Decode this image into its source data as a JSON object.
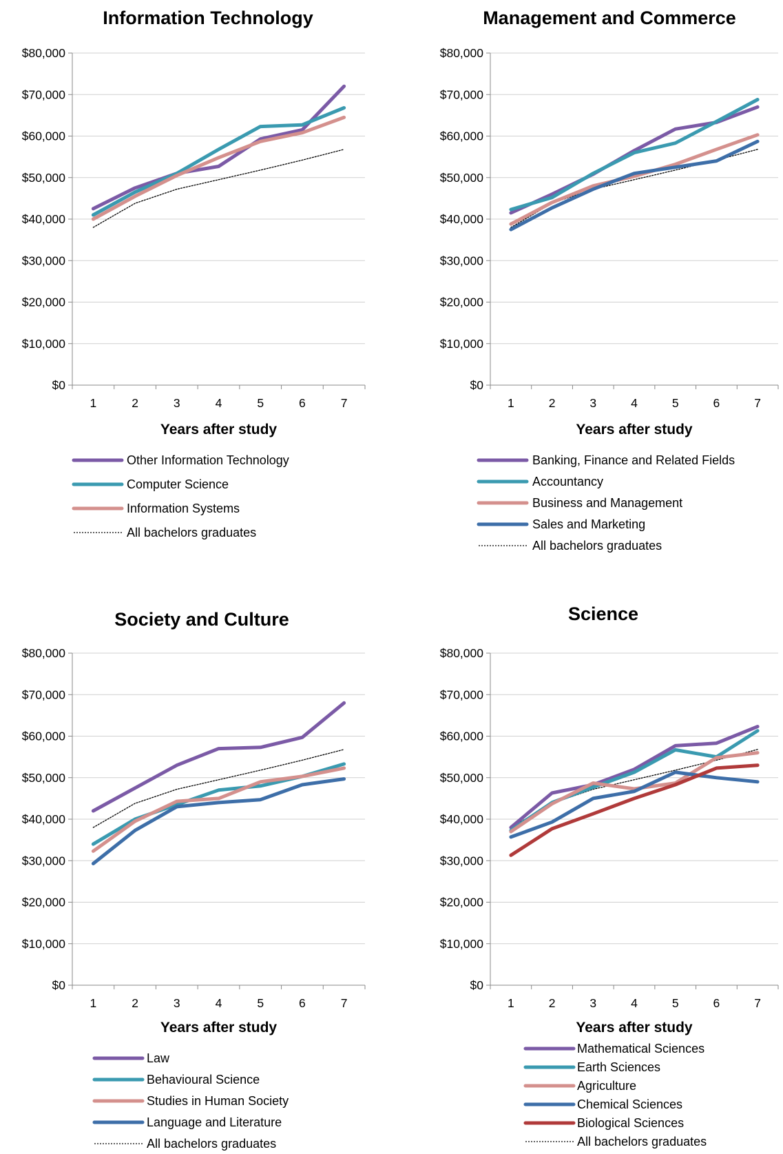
{
  "colors": {
    "purple": "#7b5aa6",
    "teal": "#3a9ab0",
    "pink": "#d4908d",
    "blue": "#3d6ea8",
    "red": "#b03a3a",
    "dotted": "#000000",
    "axis": "#888888",
    "grid": "#d0d0d0"
  },
  "chart_data": [
    {
      "type": "line",
      "title": "Information Technology",
      "xlabel": "Years after study",
      "ylabel": "",
      "categories": [
        "1",
        "2",
        "3",
        "4",
        "5",
        "6",
        "7"
      ],
      "ylim": [
        0,
        80000
      ],
      "yticks": [
        "$0",
        "$10,000",
        "$20,000",
        "$30,000",
        "$40,000",
        "$50,000",
        "$60,000",
        "$70,000",
        "$80,000"
      ],
      "grid": true,
      "legend_position": "bottom",
      "series": [
        {
          "name": "Other Information Technology",
          "color": "purple",
          "style": "solid",
          "values": [
            42500,
            47500,
            51000,
            52700,
            59300,
            61500,
            72000
          ]
        },
        {
          "name": "Computer Science",
          "color": "teal",
          "style": "solid",
          "values": [
            41000,
            46500,
            51000,
            56800,
            62300,
            62700,
            66800
          ]
        },
        {
          "name": "Information Systems",
          "color": "pink",
          "style": "solid",
          "values": [
            40000,
            45500,
            50500,
            54800,
            58700,
            60800,
            64500
          ]
        },
        {
          "name": "All bachelors graduates",
          "color": "dotted",
          "style": "dotted",
          "values": [
            38000,
            43800,
            47200,
            49500,
            51800,
            54200,
            56800
          ]
        }
      ]
    },
    {
      "type": "line",
      "title": "Management and Commerce",
      "xlabel": "Years after study",
      "ylabel": "",
      "categories": [
        "1",
        "2",
        "3",
        "4",
        "5",
        "6",
        "7"
      ],
      "ylim": [
        0,
        80000
      ],
      "yticks": [
        "$0",
        "$10,000",
        "$20,000",
        "$30,000",
        "$40,000",
        "$50,000",
        "$60,000",
        "$70,000",
        "$80,000"
      ],
      "grid": true,
      "legend_position": "bottom",
      "series": [
        {
          "name": "Banking, Finance and Related Fields",
          "color": "purple",
          "style": "solid",
          "values": [
            41500,
            46000,
            50800,
            56500,
            61700,
            63300,
            67000
          ]
        },
        {
          "name": "Accountancy",
          "color": "teal",
          "style": "solid",
          "values": [
            42300,
            45200,
            51000,
            56000,
            58300,
            63500,
            68800
          ]
        },
        {
          "name": "Business and Management",
          "color": "pink",
          "style": "solid",
          "values": [
            38800,
            44000,
            48000,
            50300,
            53200,
            56800,
            60300
          ]
        },
        {
          "name": "Sales and Marketing",
          "color": "blue",
          "style": "solid",
          "values": [
            37500,
            42700,
            47200,
            51000,
            52500,
            54000,
            58700
          ]
        },
        {
          "name": "All bachelors graduates",
          "color": "dotted",
          "style": "dotted",
          "values": [
            38000,
            43800,
            47200,
            49500,
            51800,
            54200,
            56800
          ]
        }
      ]
    },
    {
      "type": "line",
      "title": "Society and Culture",
      "xlabel": "Years after study",
      "ylabel": "",
      "categories": [
        "1",
        "2",
        "3",
        "4",
        "5",
        "6",
        "7"
      ],
      "ylim": [
        0,
        80000
      ],
      "yticks": [
        "$0",
        "$10,000",
        "$20,000",
        "$30,000",
        "$40,000",
        "$50,000",
        "$60,000",
        "$70,000",
        "$80,000"
      ],
      "grid": true,
      "legend_position": "bottom",
      "series": [
        {
          "name": "Law",
          "color": "purple",
          "style": "solid",
          "values": [
            42000,
            47500,
            53000,
            57000,
            57300,
            59700,
            68000
          ]
        },
        {
          "name": "Behavioural Science",
          "color": "teal",
          "style": "solid",
          "values": [
            34000,
            40000,
            43500,
            47000,
            48000,
            50300,
            53300
          ]
        },
        {
          "name": "Studies in Human Society",
          "color": "pink",
          "style": "solid",
          "values": [
            32300,
            39500,
            44300,
            45000,
            49000,
            50300,
            52300
          ]
        },
        {
          "name": "Language and Literature",
          "color": "blue",
          "style": "solid",
          "values": [
            29300,
            37300,
            43000,
            44000,
            44700,
            48300,
            49700
          ]
        },
        {
          "name": "All bachelors graduates",
          "color": "dotted",
          "style": "dotted",
          "values": [
            38000,
            43800,
            47200,
            49500,
            51800,
            54200,
            56800
          ]
        }
      ]
    },
    {
      "type": "line",
      "title": "Science",
      "xlabel": "Years after study",
      "ylabel": "",
      "categories": [
        "1",
        "2",
        "3",
        "4",
        "5",
        "6",
        "7"
      ],
      "ylim": [
        0,
        80000
      ],
      "yticks": [
        "$0",
        "$10,000",
        "$20,000",
        "$30,000",
        "$40,000",
        "$50,000",
        "$60,000",
        "$70,000",
        "$80,000"
      ],
      "grid": true,
      "legend_position": "bottom",
      "series": [
        {
          "name": "Mathematical Sciences",
          "color": "purple",
          "style": "solid",
          "values": [
            38000,
            46300,
            48300,
            52000,
            57700,
            58300,
            62300
          ]
        },
        {
          "name": "Earth Sciences",
          "color": "teal",
          "style": "solid",
          "values": [
            37300,
            44000,
            47700,
            51300,
            56700,
            55000,
            61300
          ]
        },
        {
          "name": "Agriculture",
          "color": "pink",
          "style": "solid",
          "values": [
            37000,
            43700,
            48700,
            47300,
            48700,
            54800,
            56000
          ]
        },
        {
          "name": "Chemical Sciences",
          "color": "blue",
          "style": "solid",
          "values": [
            35700,
            39300,
            45000,
            46700,
            51300,
            50000,
            49000
          ]
        },
        {
          "name": "Biological Sciences",
          "color": "red",
          "style": "solid",
          "values": [
            31300,
            37700,
            41300,
            45000,
            48300,
            52300,
            53000
          ]
        },
        {
          "name": "All bachelors graduates",
          "color": "dotted",
          "style": "dotted",
          "values": [
            38000,
            43800,
            47200,
            49500,
            51800,
            54200,
            56800
          ]
        }
      ]
    }
  ]
}
